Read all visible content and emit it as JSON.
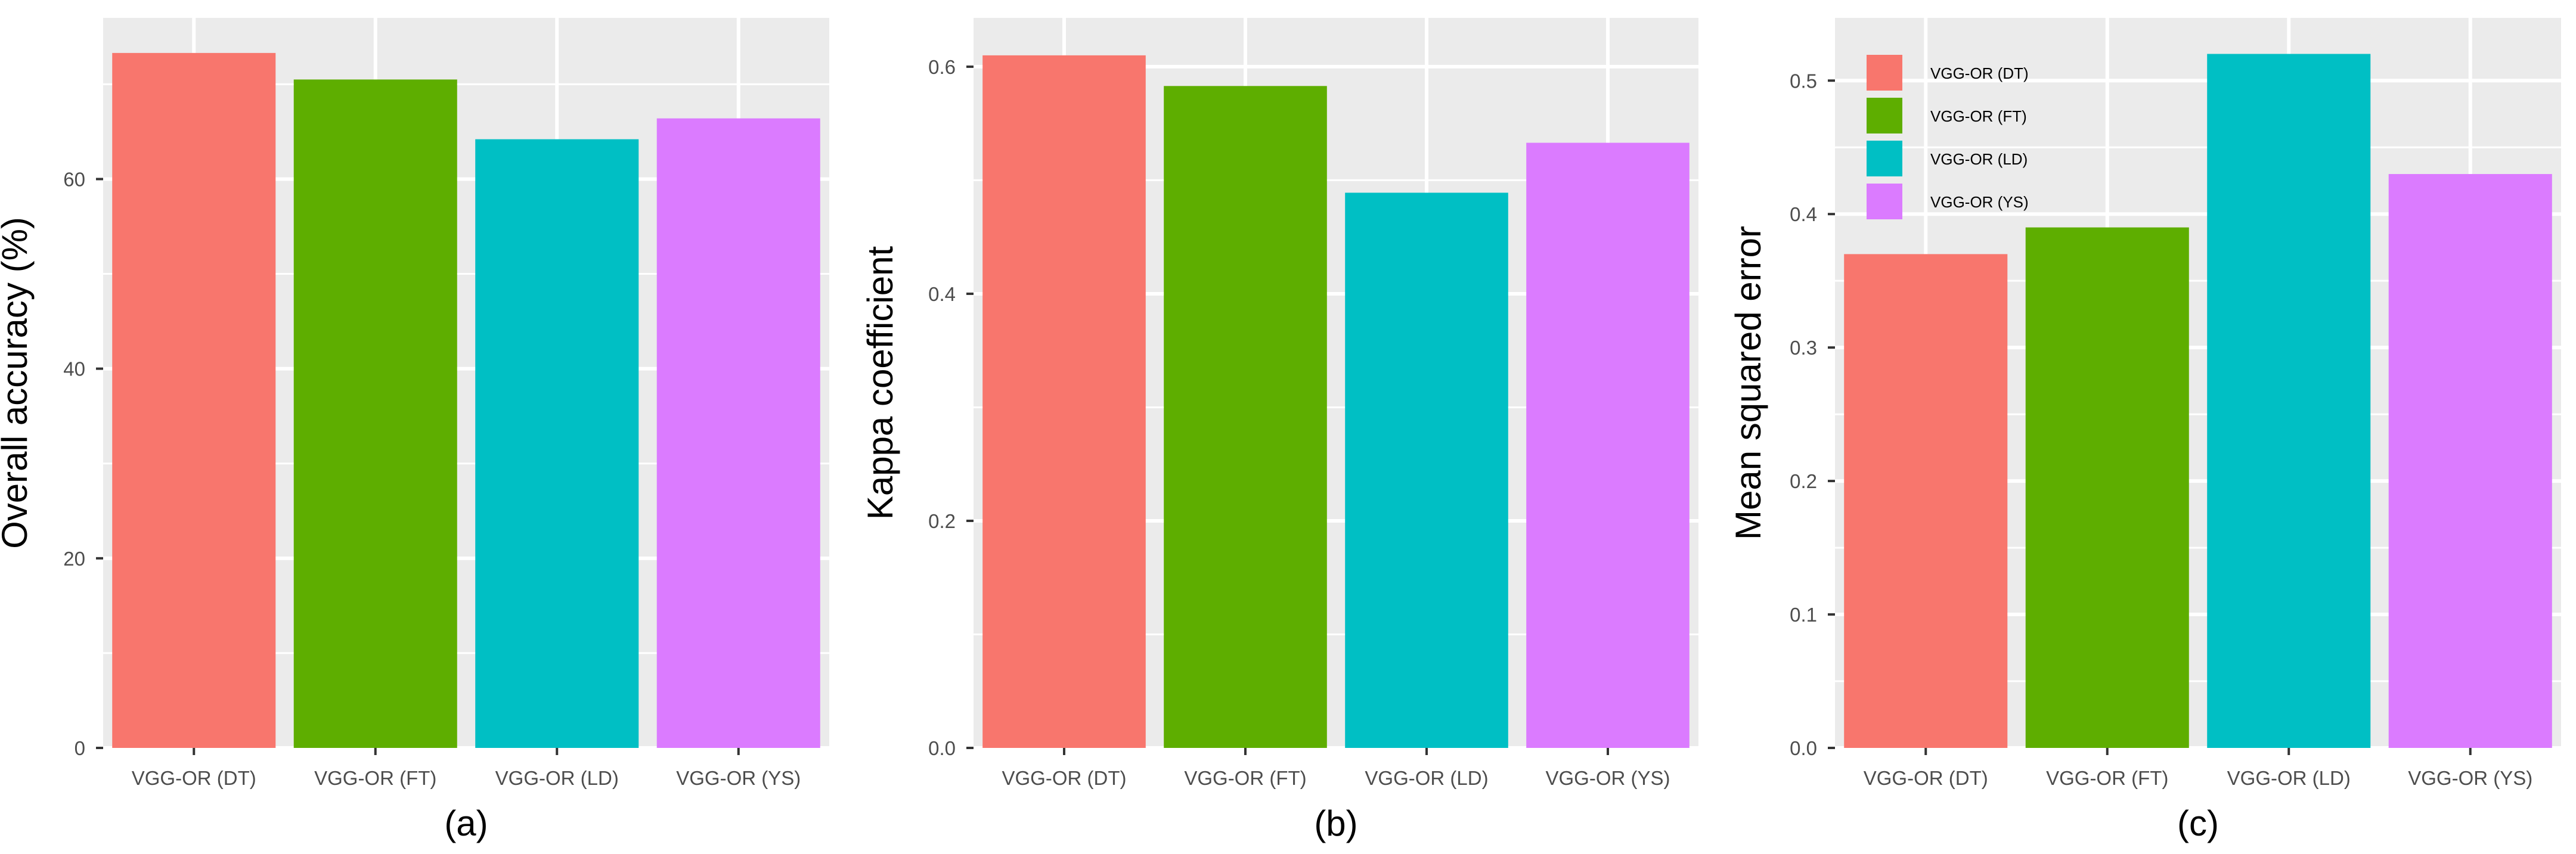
{
  "figure": {
    "colors": {
      "panel_bg": "#EBEBEB",
      "grid": "#FFFFFF",
      "axis_tick": "#333333",
      "tick_text": "#4D4D4D"
    }
  },
  "chart_data": [
    {
      "type": "bar",
      "panel_label": "(a)",
      "title": "",
      "xlabel": "",
      "ylabel": "Overall accuracy (%)",
      "categories": [
        "VGG-OR (DT)",
        "VGG-OR (FT)",
        "VGG-OR (LD)",
        "VGG-OR (YS)"
      ],
      "values": [
        73.3,
        70.5,
        64.2,
        66.4
      ],
      "colors": [
        "#F8766D",
        "#5EAE00",
        "#00BFC4",
        "#DB7BFF"
      ],
      "ylim": [
        0,
        77
      ],
      "yticks": [
        0,
        20,
        40,
        60
      ],
      "ytick_labels": [
        "0",
        "20",
        "40",
        "60"
      ],
      "grid": true,
      "legend": null
    },
    {
      "type": "bar",
      "panel_label": "(b)",
      "title": "",
      "xlabel": "",
      "ylabel": "Kappa coefficient",
      "categories": [
        "VGG-OR (DT)",
        "VGG-OR (FT)",
        "VGG-OR (LD)",
        "VGG-OR (YS)"
      ],
      "values": [
        0.61,
        0.583,
        0.489,
        0.533
      ],
      "colors": [
        "#F8766D",
        "#5EAE00",
        "#00BFC4",
        "#DB7BFF"
      ],
      "ylim": [
        0,
        0.643
      ],
      "yticks": [
        0.0,
        0.2,
        0.4,
        0.6
      ],
      "ytick_labels": [
        "0.0",
        "0.2",
        "0.4",
        "0.6"
      ],
      "grid": true,
      "legend": null
    },
    {
      "type": "bar",
      "panel_label": "(c)",
      "title": "",
      "xlabel": "",
      "ylabel": "Mean squared error",
      "categories": [
        "VGG-OR (DT)",
        "VGG-OR (FT)",
        "VGG-OR (LD)",
        "VGG-OR (YS)"
      ],
      "values": [
        0.37,
        0.39,
        0.52,
        0.43
      ],
      "colors": [
        "#F8766D",
        "#5EAE00",
        "#00BFC4",
        "#DB7BFF"
      ],
      "ylim": [
        0,
        0.547
      ],
      "yticks": [
        0.0,
        0.1,
        0.2,
        0.3,
        0.4,
        0.5
      ],
      "ytick_labels": [
        "0.0",
        "0.1",
        "0.2",
        "0.3",
        "0.4",
        "0.5"
      ],
      "grid": true,
      "legend": {
        "placement": "top-left",
        "entries": [
          "VGG-OR (DT)",
          "VGG-OR (FT)",
          "VGG-OR (LD)",
          "VGG-OR (YS)"
        ]
      }
    }
  ]
}
